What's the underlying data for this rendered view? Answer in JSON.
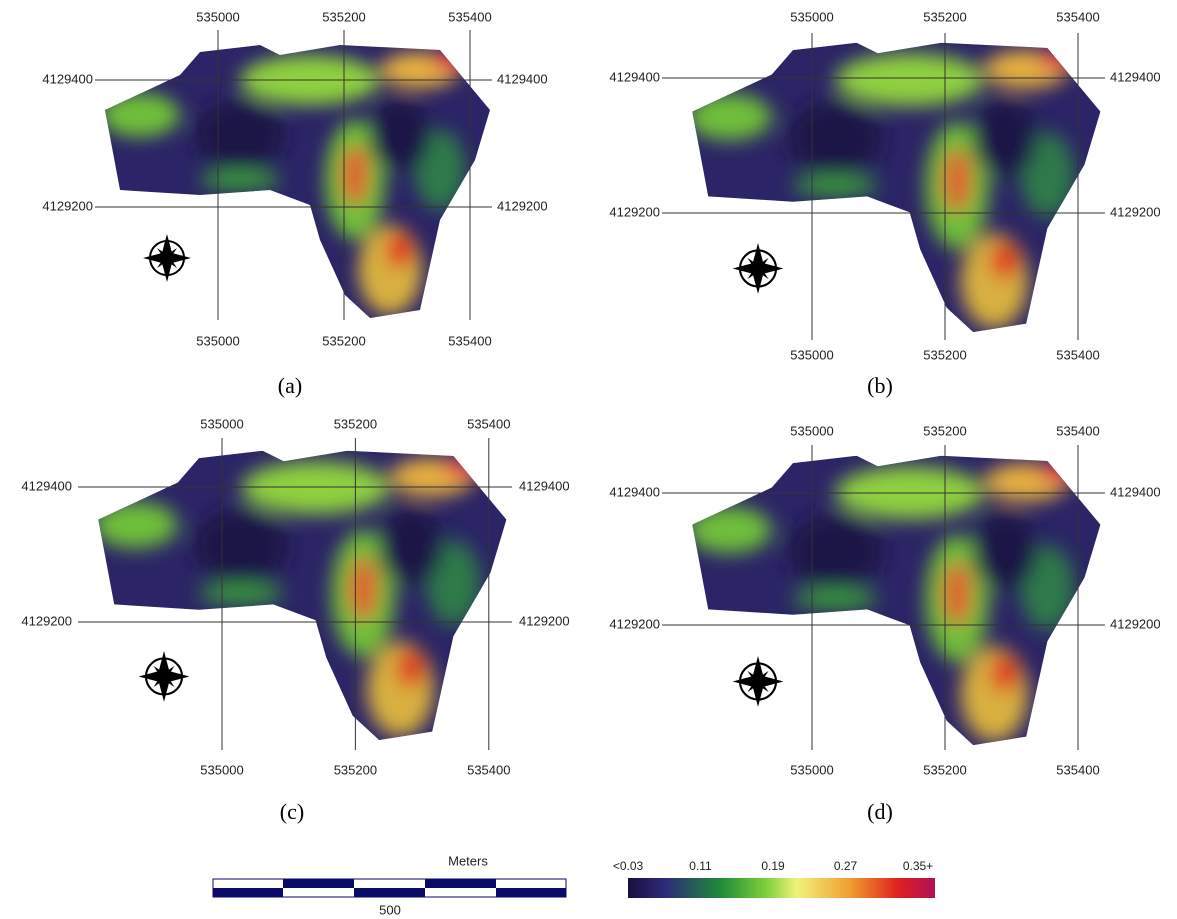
{
  "panels": [
    {
      "caption": "(a)",
      "x_grid": [
        535000,
        535200,
        535400
      ],
      "y_grid": [
        4129400,
        4129200
      ]
    },
    {
      "caption": "(b)",
      "x_grid": [
        535000,
        535200,
        535400
      ],
      "y_grid": [
        4129400,
        4129200
      ]
    },
    {
      "caption": "(c)",
      "x_grid": [
        535000,
        535200,
        535400
      ],
      "y_grid": [
        4129400,
        4129200
      ]
    },
    {
      "caption": "(d)",
      "x_grid": [
        535000,
        535200,
        535400
      ],
      "y_grid": [
        4129400,
        4129200
      ]
    }
  ],
  "scale_bar": {
    "title": "Meters",
    "label": "500"
  },
  "legend": {
    "labels": [
      "<0.03",
      "0.11",
      "0.19",
      "0.27",
      "0.35+"
    ]
  }
}
